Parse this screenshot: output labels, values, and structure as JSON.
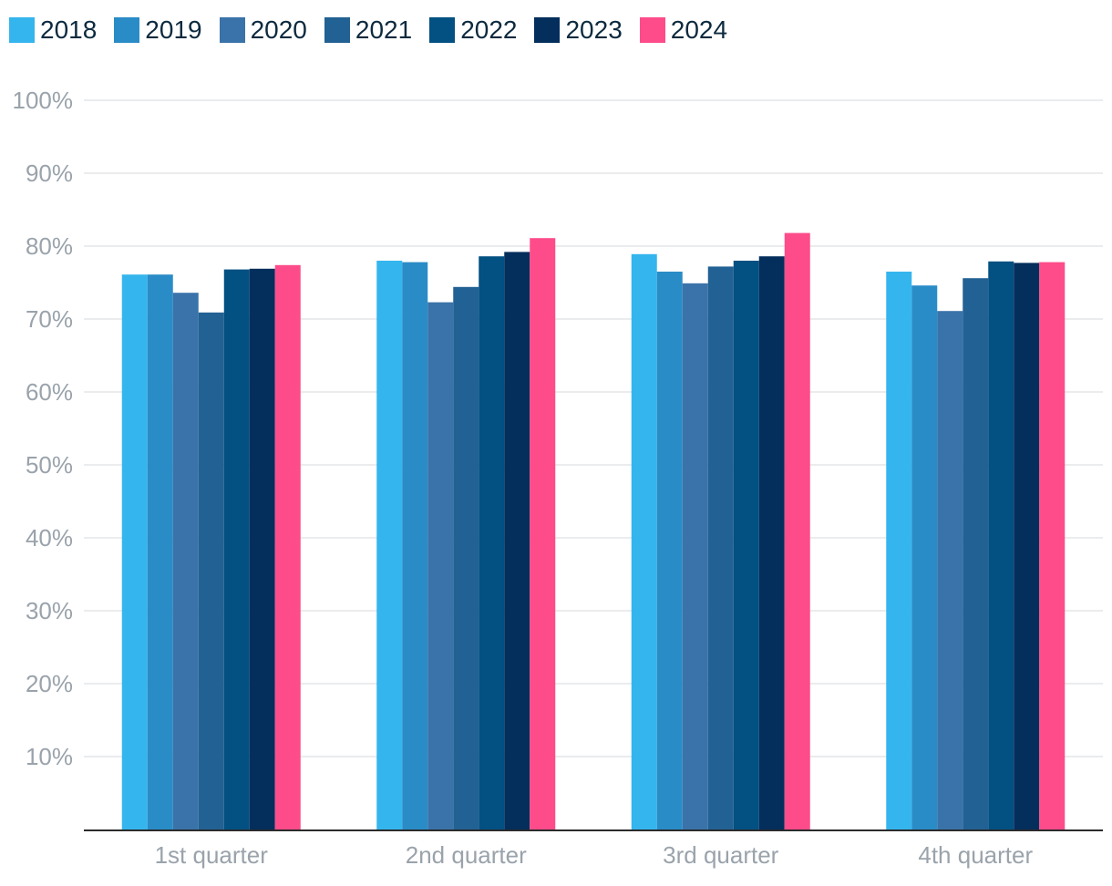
{
  "chart_data": {
    "type": "bar",
    "categories": [
      "1st quarter",
      "2nd quarter",
      "3rd quarter",
      "4th quarter"
    ],
    "series": [
      {
        "name": "2018",
        "color": "#35b5ed",
        "values": [
          76.1,
          78.0,
          78.9,
          76.5
        ]
      },
      {
        "name": "2019",
        "color": "#2a8cc7",
        "values": [
          76.1,
          77.8,
          76.5,
          74.6
        ]
      },
      {
        "name": "2020",
        "color": "#3a73a9",
        "values": [
          73.6,
          72.3,
          74.9,
          71.1
        ]
      },
      {
        "name": "2021",
        "color": "#226193",
        "values": [
          70.9,
          74.4,
          77.2,
          75.6
        ]
      },
      {
        "name": "2022",
        "color": "#035082",
        "values": [
          76.8,
          78.6,
          78.0,
          77.9
        ]
      },
      {
        "name": "2023",
        "color": "#042e5c",
        "values": [
          76.9,
          79.2,
          78.6,
          77.7
        ]
      },
      {
        "name": "2024",
        "color": "#fe4c8a",
        "values": [
          77.4,
          81.1,
          81.8,
          77.8
        ]
      }
    ],
    "yticks": [
      "10%",
      "20%",
      "30%",
      "40%",
      "50%",
      "60%",
      "70%",
      "80%",
      "90%",
      "100%"
    ],
    "ylim": [
      0,
      100
    ],
    "grid": true,
    "legend_position": "top-left"
  }
}
